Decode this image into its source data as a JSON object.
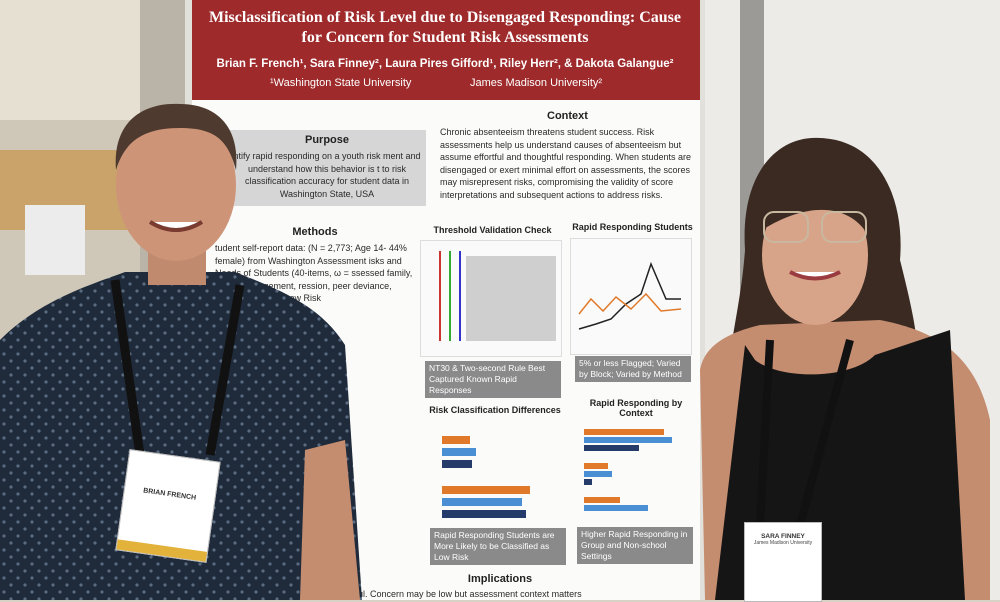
{
  "poster": {
    "title": "Misclassification of Risk Level due to Disengaged Responding: Cause for Concern for Student Risk Assessments",
    "authors": "Brian F. French¹, Sara Finney², Laura Pires Gifford¹, Riley Herr², & Dakota Galangue²",
    "affiliations": [
      "¹Washington State University",
      "James Madison University²"
    ],
    "purpose": {
      "heading": "Purpose",
      "text": "ntify rapid responding on a youth risk ment and understand how this behavior is t to risk classification accuracy for student data in Washington State, USA"
    },
    "context": {
      "heading": "Context",
      "text": "Chronic absenteeism threatens student success. Risk assessments help us understand causes of absenteeism but assume effortful and thoughtful responding. When students are disengaged or exert minimal effort on assessments, the scores may misrepresent risks, compromising the validity of score interpretations and subsequent actions to address risks."
    },
    "methods": {
      "heading": "Methods",
      "text": "tudent self-report data: (N = 2,773; Age 14- 44% female) from Washington Assessment isks and Needs of Students (40-items, ω = ssessed family, school engagement, ression, peer deviance, substance High / Low Risk"
    },
    "figures": [
      {
        "heading": "Threshold Validation Check",
        "caption": "NT30 & Two-second Rule Best Captured Known Rapid Responses"
      },
      {
        "heading": "Rapid Responding Students",
        "caption": "5% or less Flagged; Varied by Block; Varied by Method"
      },
      {
        "heading": "Risk Classification Differences",
        "caption": "Rapid Responding Students are More Likely to be Classified as Low Risk"
      },
      {
        "heading": "Rapid Responding by Context",
        "caption": "Higher Rapid Responding in Group and Non-school Settings"
      }
    ],
    "implications": {
      "heading": "Implications",
      "text": "ortful. Concern may be low but assessment context matters"
    },
    "badges": [
      {
        "name": "BRIAN FRENCH"
      },
      {
        "name": "SARA FINNEY",
        "affiliation": "James Madison University"
      }
    ]
  }
}
